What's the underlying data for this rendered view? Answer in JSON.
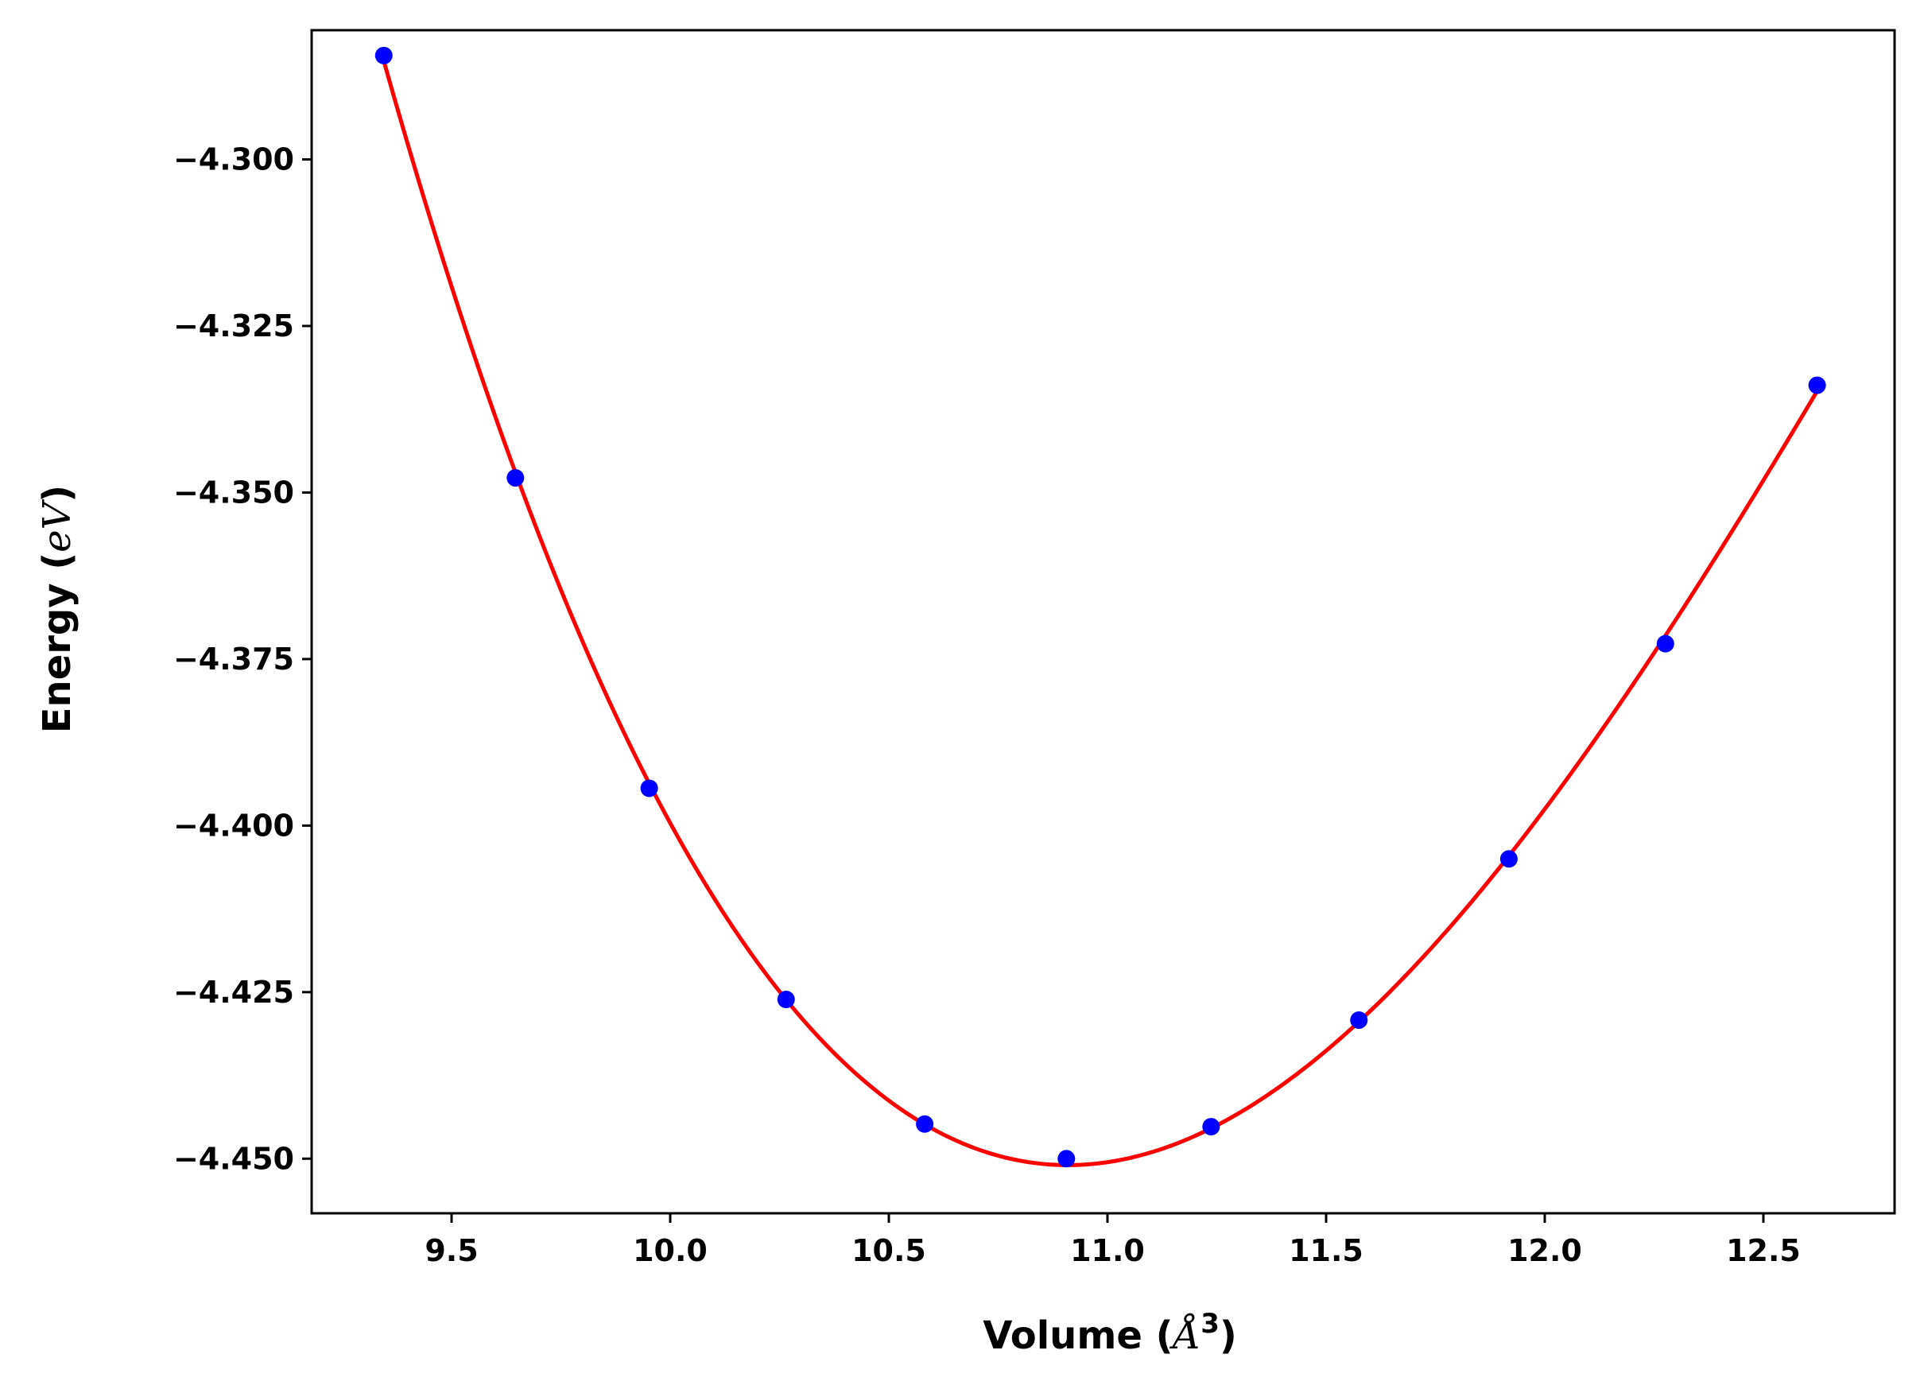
{
  "chart_data": {
    "type": "scatter",
    "title": "",
    "xlabel": {
      "prefix": "Volume (",
      "symbol": "Å",
      "exponent": "3",
      "suffix": ")"
    },
    "ylabel": {
      "prefix": "Energy (",
      "unit": "eV",
      "suffix": ")"
    },
    "xlim": [
      9.18,
      12.8
    ],
    "ylim": [
      -4.4582,
      -4.2806
    ],
    "xticks": [
      9.5,
      10.0,
      10.5,
      11.0,
      11.5,
      12.0,
      12.5
    ],
    "xtick_labels": [
      "9.5",
      "10.0",
      "10.5",
      "11.0",
      "11.5",
      "12.0",
      "12.5"
    ],
    "yticks": [
      -4.3,
      -4.325,
      -4.35,
      -4.375,
      -4.4,
      -4.425,
      -4.45
    ],
    "ytick_labels": [
      "−4.300",
      "−4.325",
      "−4.350",
      "−4.375",
      "−4.400",
      "−4.425",
      "−4.450"
    ],
    "grid": false,
    "series": [
      {
        "style": "markers",
        "color": "#0000ff",
        "x": [
          9.345,
          9.646,
          9.952,
          10.265,
          10.582,
          10.906,
          11.237,
          11.575,
          11.918,
          12.276,
          12.623
        ],
        "y": [
          -4.2844,
          -4.3478,
          -4.3944,
          -4.4261,
          -4.4448,
          -4.45,
          -4.4452,
          -4.4292,
          -4.405,
          -4.3727,
          -4.3339
        ]
      },
      {
        "style": "fit-curve",
        "color": "#ff0000"
      }
    ]
  }
}
